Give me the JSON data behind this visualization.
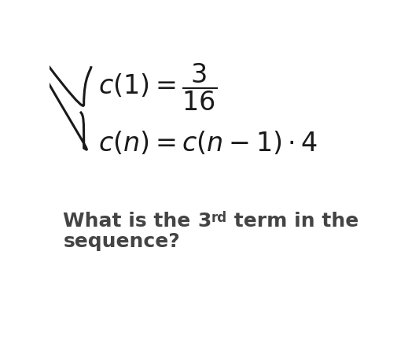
{
  "bg_color": "#ffffff",
  "text_color": "#1a1a1a",
  "question_color": "#444444",
  "fig_width": 5.06,
  "fig_height": 4.32,
  "dpi": 100,
  "formula1": "c(1) = \\dfrac{3}{16}",
  "formula2": "c(n) = c(n-1) \\cdot 4",
  "q_part1": "What is the ",
  "q_num": "3",
  "q_sup": "rd",
  "q_part2": " term in the",
  "q_line2": "sequence?",
  "fs_formula": 24,
  "fs_question": 18,
  "fs_sup": 12
}
